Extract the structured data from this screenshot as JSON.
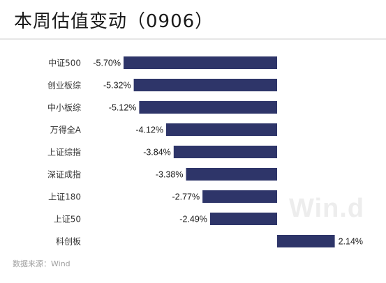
{
  "header": {
    "title": "本周估值变动（0906）"
  },
  "footer": {
    "source": "数据来源：Wind"
  },
  "watermark": {
    "text": "Win.d"
  },
  "chart_data": {
    "type": "bar",
    "orientation": "horizontal",
    "title": "本周估值变动（0906）",
    "categories": [
      "中证500",
      "创业板综",
      "中小板综",
      "万得全A",
      "上证综指",
      "深证成指",
      "上证180",
      "上证50",
      "科创板"
    ],
    "values": [
      -5.7,
      -5.32,
      -5.12,
      -4.12,
      -3.84,
      -3.38,
      -2.77,
      -2.49,
      2.14
    ],
    "data_labels": [
      "-5.70%",
      "-5.32%",
      "-5.12%",
      "-4.12%",
      "-3.84%",
      "-3.38%",
      "-2.77%",
      "-2.49%",
      "2.14%"
    ],
    "xlim": [
      -5.7,
      2.14
    ],
    "grid": false,
    "legend": "none",
    "colors": {
      "bar": "#2e3569",
      "label": "#1a1a1a",
      "category": "#333333"
    }
  }
}
